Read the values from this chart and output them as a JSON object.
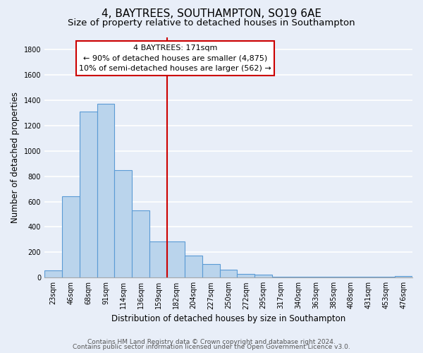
{
  "title": "4, BAYTREES, SOUTHAMPTON, SO19 6AE",
  "subtitle": "Size of property relative to detached houses in Southampton",
  "xlabel": "Distribution of detached houses by size in Southampton",
  "ylabel": "Number of detached properties",
  "bar_labels": [
    "23sqm",
    "46sqm",
    "68sqm",
    "91sqm",
    "114sqm",
    "136sqm",
    "159sqm",
    "182sqm",
    "204sqm",
    "227sqm",
    "250sqm",
    "272sqm",
    "295sqm",
    "317sqm",
    "340sqm",
    "363sqm",
    "385sqm",
    "408sqm",
    "431sqm",
    "453sqm",
    "476sqm"
  ],
  "bar_values": [
    55,
    645,
    1310,
    1375,
    850,
    530,
    285,
    285,
    175,
    105,
    65,
    30,
    25,
    5,
    5,
    5,
    5,
    5,
    5,
    5,
    15
  ],
  "bar_color": "#bad4ec",
  "bar_edge_color": "#5b9bd5",
  "vline_index": 7,
  "vline_color": "#cc0000",
  "annotation_title": "4 BAYTREES: 171sqm",
  "annotation_line1": "← 90% of detached houses are smaller (4,875)",
  "annotation_line2": "10% of semi-detached houses are larger (562) →",
  "annotation_box_color": "#ffffff",
  "annotation_box_edge": "#cc0000",
  "ylim": [
    0,
    1900
  ],
  "yticks": [
    0,
    200,
    400,
    600,
    800,
    1000,
    1200,
    1400,
    1600,
    1800
  ],
  "footer1": "Contains HM Land Registry data © Crown copyright and database right 2024.",
  "footer2": "Contains public sector information licensed under the Open Government Licence v3.0.",
  "bg_color": "#e8eef8",
  "plot_bg_color": "#e8eef8",
  "grid_color": "#ffffff",
  "title_fontsize": 11,
  "subtitle_fontsize": 9.5,
  "axis_label_fontsize": 8.5,
  "tick_fontsize": 7,
  "footer_fontsize": 6.5
}
